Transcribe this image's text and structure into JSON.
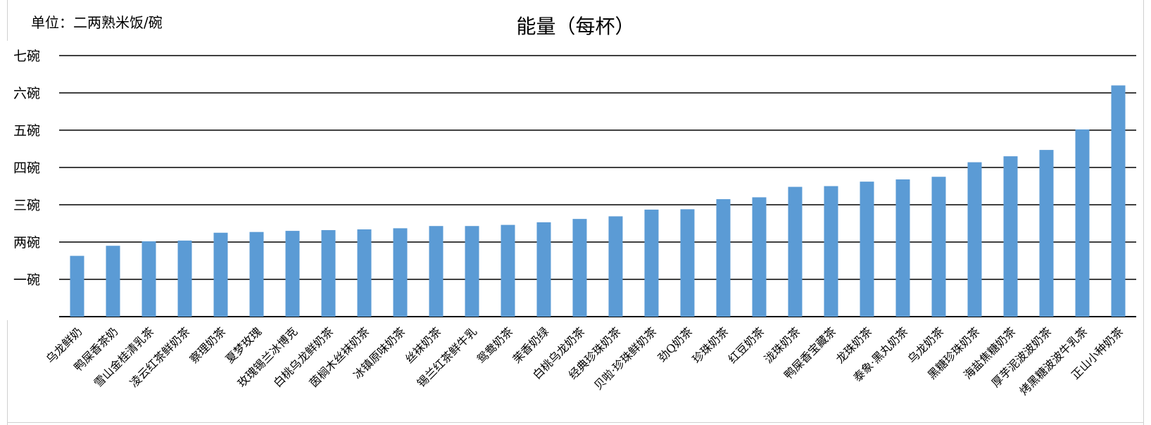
{
  "unit_label": "单位：二两熟米饭/碗",
  "chart_data": {
    "type": "bar",
    "title": "能量（每杯）",
    "xlabel": "",
    "ylabel": "",
    "ylim": [
      0,
      7
    ],
    "grid": true,
    "legend": "none",
    "bar_color": "#5B9BD5",
    "y_tick_labels": [
      "",
      "一碗",
      "两碗",
      "三碗",
      "四碗",
      "五碗",
      "六碗",
      "七碗"
    ],
    "categories": [
      "乌龙鲜奶",
      "鸭屎香茶奶",
      "雪山金桂清乳茶",
      "凌云红茶鲜奶茶",
      "察理奶茶",
      "夏梦玫瑰",
      "玫瑰锡兰冰博克",
      "白桃乌龙鲜奶茶",
      "茵榈木丝袜奶茶",
      "冰镇原味奶茶",
      "丝袜奶茶",
      "锡兰红茶鲜牛乳",
      "鸳鸯奶茶",
      "茉香奶绿",
      "白桃乌龙奶茶",
      "经典珍珠奶茶",
      "贝啦·珍珠鲜奶茶",
      "劲Q奶茶",
      "珍珠奶茶",
      "红豆奶茶",
      "泷珠奶茶",
      "鸭屎香宝藏茶",
      "龙珠奶茶",
      "泰象·黑丸奶茶",
      "乌龙奶茶",
      "黑糖珍珠奶茶",
      "海盐焦糖奶茶",
      "厚芋泥波波奶茶",
      "烤黑糖波波牛乳茶",
      "正山小种奶茶"
    ],
    "values": [
      1.63,
      1.9,
      2.02,
      2.04,
      2.25,
      2.27,
      2.3,
      2.32,
      2.34,
      2.37,
      2.43,
      2.43,
      2.46,
      2.53,
      2.62,
      2.69,
      2.87,
      2.88,
      3.15,
      3.2,
      3.48,
      3.5,
      3.62,
      3.68,
      3.75,
      4.14,
      4.3,
      4.47,
      5.02,
      6.2
    ]
  }
}
